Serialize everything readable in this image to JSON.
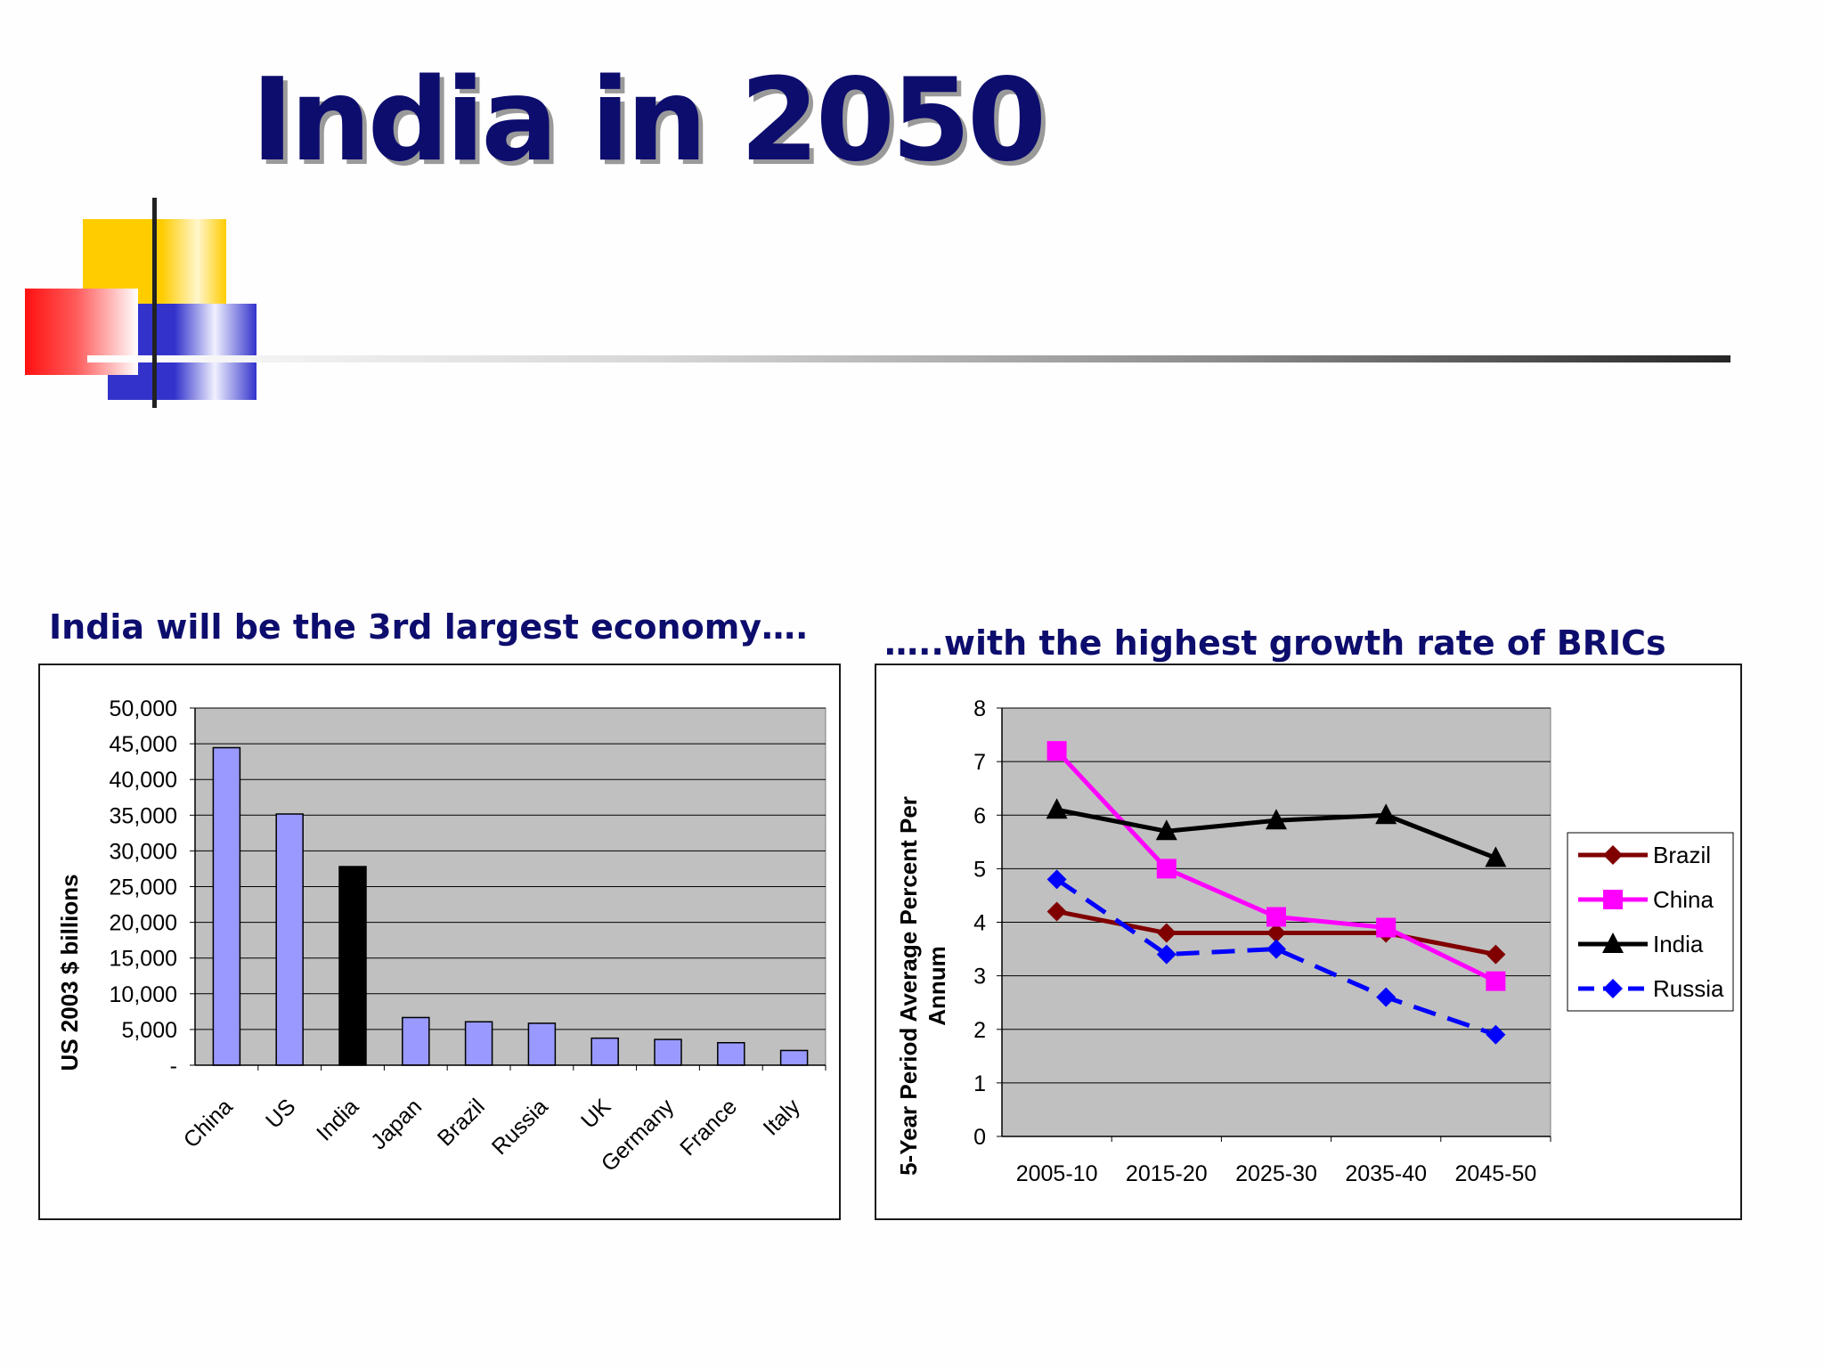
{
  "slide": {
    "title": "India in 2050"
  },
  "left_panel": {
    "subtitle": "India will be the 3rd largest economy…."
  },
  "right_panel": {
    "subtitle": "…..with the highest growth rate of BRICs"
  },
  "chart_data": [
    {
      "type": "bar",
      "title": "",
      "xlabel": "",
      "ylabel": "US 2003 $ billions",
      "categories": [
        "China",
        "US",
        "India",
        "Japan",
        "Brazil",
        "Russia",
        "UK",
        "Germany",
        "France",
        "Italy"
      ],
      "values": [
        44450,
        35165,
        27803,
        6673,
        6074,
        5870,
        3782,
        3603,
        3148,
        2061
      ],
      "highlight_category": "India",
      "ylim": [
        0,
        50000
      ],
      "yticks": [
        "-",
        "5,000",
        "10,000",
        "15,000",
        "20,000",
        "25,000",
        "30,000",
        "35,000",
        "40,000",
        "45,000",
        "50,000"
      ],
      "grid": true,
      "legend": "none",
      "colors": {
        "bar": "#9999ff",
        "highlight": "#000000",
        "plot_bg": "#c0c0c0",
        "gridline": "#000000"
      }
    },
    {
      "type": "line",
      "title": "",
      "xlabel": "",
      "ylabel": "5-Year Period Average Percent Per Annum",
      "x": [
        "2005-10",
        "2015-20",
        "2025-30",
        "2035-40",
        "2045-50"
      ],
      "ylim": [
        0,
        8
      ],
      "yticks": [
        "0",
        "1",
        "2",
        "3",
        "4",
        "5",
        "6",
        "7",
        "8"
      ],
      "grid": true,
      "legend": "right",
      "series": [
        {
          "name": "Brazil",
          "values": [
            4.2,
            3.8,
            3.8,
            3.8,
            3.4
          ],
          "color": "#800000",
          "marker": "diamond",
          "dash": false
        },
        {
          "name": "China",
          "values": [
            7.2,
            5.0,
            4.1,
            3.9,
            2.9
          ],
          "color": "#ff00ff",
          "marker": "square",
          "dash": false
        },
        {
          "name": "India",
          "values": [
            6.1,
            5.7,
            5.9,
            6.0,
            5.2
          ],
          "color": "#000000",
          "marker": "triangle",
          "dash": false
        },
        {
          "name": "Russia",
          "values": [
            4.8,
            3.4,
            3.5,
            2.6,
            1.9
          ],
          "color": "#0000ff",
          "marker": "diamond",
          "dash": true
        }
      ],
      "colors": {
        "plot_bg": "#c0c0c0",
        "gridline": "#000000"
      }
    }
  ]
}
